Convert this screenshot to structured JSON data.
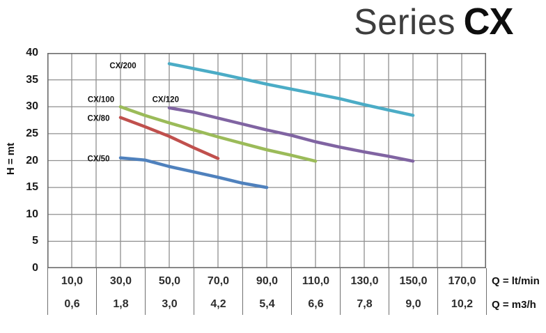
{
  "title": {
    "light": "Series",
    "bold": "CX"
  },
  "chart_data": {
    "type": "line",
    "title": "Series CX",
    "ylabel": "H = mt",
    "xlabel_row1": "Q = lt/min",
    "xlabel_row2": "Q = m3/h",
    "xlim": [
      0,
      180
    ],
    "ylim": [
      0,
      40
    ],
    "x_grid_step": 10,
    "y_grid_step": 5,
    "grid_on": true,
    "grid_color": "#8f8f8f",
    "border_color": "#6b6b6b",
    "y_ticks": [
      40,
      35,
      30,
      25,
      20,
      15,
      10,
      5,
      0
    ],
    "x_axis": {
      "unit_row1": "Q = lt/min",
      "unit_row2": "Q = m3/h",
      "tick_centers_q": [
        10,
        30,
        50,
        70,
        90,
        110,
        130,
        150,
        170
      ],
      "ticks_lt_min": [
        "10,0",
        "30,0",
        "50,0",
        "70,0",
        "90,0",
        "110,0",
        "130,0",
        "150,0",
        "170,0"
      ],
      "ticks_m3_h": [
        "0,6",
        "1,8",
        "3,0",
        "4,2",
        "5,4",
        "6,6",
        "7,8",
        "9,0",
        "10,2"
      ]
    },
    "series": [
      {
        "name": "CX/50",
        "color": "#4F81BD",
        "label_pos": [
          21,
          20.4
        ],
        "points": [
          [
            30,
            20.5
          ],
          [
            40,
            20.1
          ],
          [
            50,
            18.9
          ],
          [
            60,
            17.9
          ],
          [
            70,
            16.9
          ],
          [
            80,
            15.8
          ],
          [
            90,
            15.0
          ]
        ]
      },
      {
        "name": "CX/80",
        "color": "#C0504D",
        "label_pos": [
          21,
          27.9
        ],
        "points": [
          [
            30,
            28.0
          ],
          [
            40,
            26.3
          ],
          [
            50,
            24.5
          ],
          [
            60,
            22.4
          ],
          [
            70,
            20.4
          ]
        ]
      },
      {
        "name": "CX/100",
        "color": "#9BBB59",
        "label_pos": [
          22,
          31.4
        ],
        "points": [
          [
            30,
            30.0
          ],
          [
            40,
            28.4
          ],
          [
            50,
            27.0
          ],
          [
            60,
            25.7
          ],
          [
            70,
            24.4
          ],
          [
            80,
            23.2
          ],
          [
            90,
            22.0
          ],
          [
            100,
            21.0
          ],
          [
            110,
            19.9
          ]
        ]
      },
      {
        "name": "CX/120",
        "color": "#8064A2",
        "label_pos": [
          48.5,
          31.4
        ],
        "points": [
          [
            50,
            29.8
          ],
          [
            60,
            29.0
          ],
          [
            70,
            27.9
          ],
          [
            80,
            26.8
          ],
          [
            90,
            25.7
          ],
          [
            100,
            24.7
          ],
          [
            110,
            23.5
          ],
          [
            120,
            22.5
          ],
          [
            130,
            21.6
          ],
          [
            140,
            20.8
          ],
          [
            150,
            19.9
          ]
        ]
      },
      {
        "name": "CX/200",
        "color": "#4BACC6",
        "label_pos": [
          31,
          37.7
        ],
        "points": [
          [
            50,
            38.0
          ],
          [
            60,
            37.1
          ],
          [
            70,
            36.2
          ],
          [
            80,
            35.2
          ],
          [
            90,
            34.2
          ],
          [
            100,
            33.3
          ],
          [
            110,
            32.4
          ],
          [
            120,
            31.5
          ],
          [
            130,
            30.4
          ],
          [
            140,
            29.4
          ],
          [
            150,
            28.4
          ]
        ]
      }
    ]
  }
}
